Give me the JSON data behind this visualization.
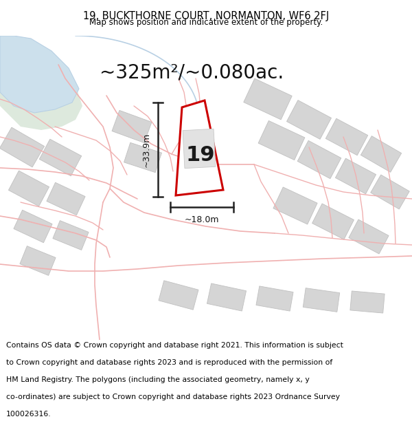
{
  "title": "19, BUCKTHORNE COURT, NORMANTON, WF6 2FJ",
  "subtitle": "Map shows position and indicative extent of the property.",
  "area_text": "~325m²/~0.080ac.",
  "dim_width": "~18.0m",
  "dim_height": "~33.9m",
  "plot_number": "19",
  "footer_line1": "Contains OS data © Crown copyright and database right 2021. This information is subject",
  "footer_line2": "to Crown copyright and database rights 2023 and is reproduced with the permission of",
  "footer_line3": "HM Land Registry. The polygons (including the associated geometry, namely x, y",
  "footer_line4": "co-ordinates) are subject to Crown copyright and database rights 2023 Ordnance Survey",
  "footer_line5": "100026316.",
  "map_bg": "#f8f8f6",
  "road_color": "#f0b0b0",
  "road_outline": "#e8a8a8",
  "plot_outline_color": "#cc0000",
  "building_fill": "#d5d5d5",
  "building_outline": "#c0c0c0",
  "green_fill": "#dde9dd",
  "blue_fill": "#cce0ec",
  "blue_road": "#b8d0e4",
  "dim_line_color": "#222222",
  "title_fontsize": 10.5,
  "subtitle_fontsize": 8.5,
  "area_fontsize": 20,
  "plot_num_fontsize": 22,
  "footer_fontsize": 7.8
}
